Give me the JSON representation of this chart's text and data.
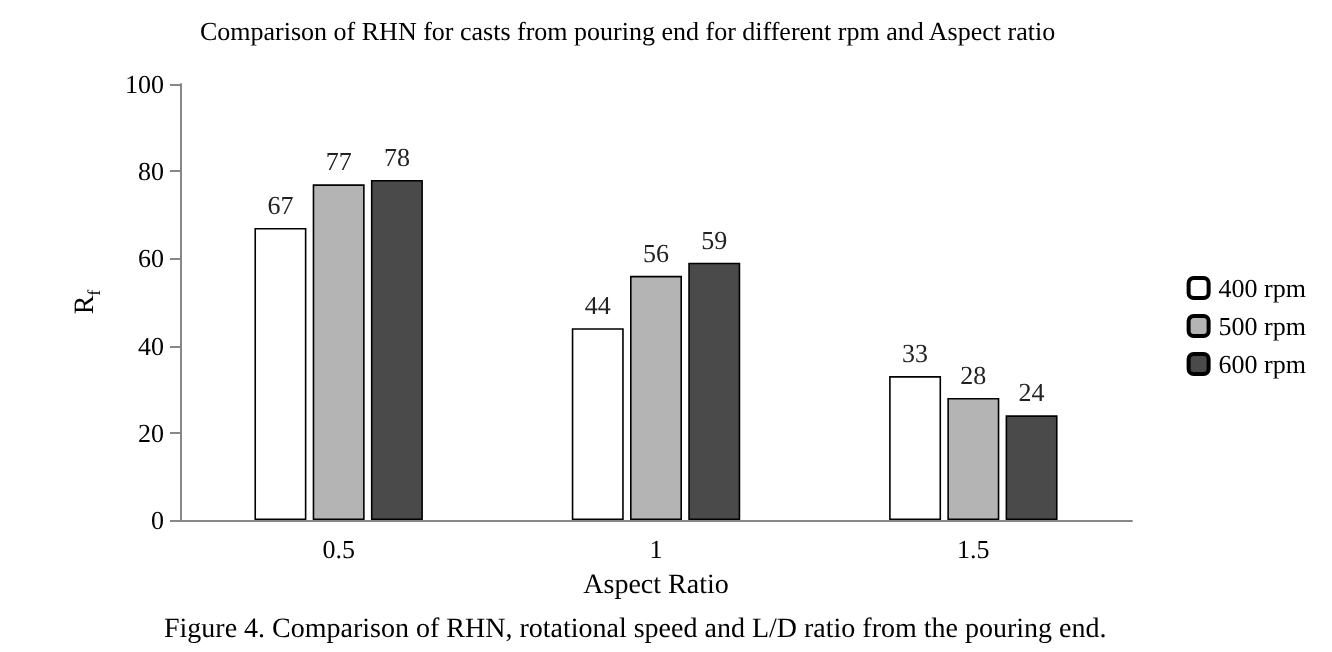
{
  "chart_data": {
    "type": "bar",
    "title": "Comparison of RHN for casts from pouring end for different rpm and Aspect ratio",
    "xlabel": "Aspect Ratio",
    "ylabel": "R$_{f}$",
    "categories": [
      "0.5",
      "1",
      "1.5"
    ],
    "series": [
      {
        "name": "400 rpm",
        "color": "#ffffff",
        "values": [
          67,
          44,
          33
        ]
      },
      {
        "name": "500 rpm",
        "color": "#b4b4b4",
        "values": [
          77,
          56,
          28
        ]
      },
      {
        "name": "600 rpm",
        "color": "#4a4a4a",
        "values": [
          78,
          59,
          24
        ]
      }
    ],
    "ylim": [
      0,
      100
    ],
    "yticks": [
      0,
      20,
      40,
      60,
      80,
      100
    ],
    "grid": false,
    "legend": "right",
    "data_labels": true,
    "annotations": [
      "Figure 4. Comparison of RHN, rotational speed and L/D ratio from the pouring end."
    ]
  }
}
